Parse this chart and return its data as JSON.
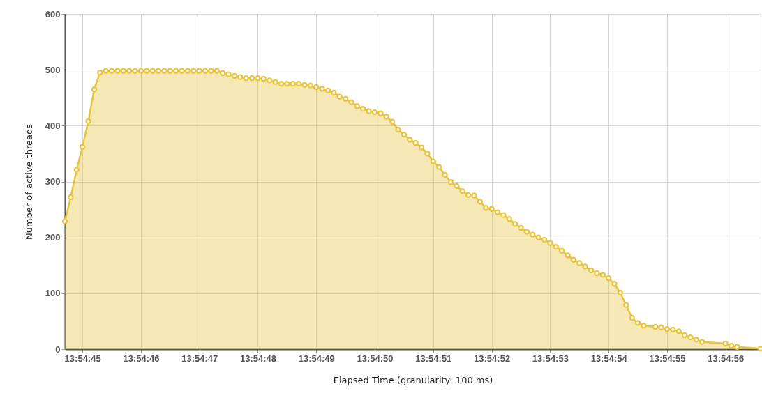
{
  "chart_data": {
    "type": "area",
    "xlabel": "Elapsed Time (granularity: 100 ms)",
    "ylabel": "Number of active threads",
    "x": [
      13.9124167,
      13.9124444,
      13.9124722,
      13.9125,
      13.9125278,
      13.9125556,
      13.9125833,
      13.9126111,
      13.9126389,
      13.9126667,
      13.9126944,
      13.9127222,
      13.91275,
      13.9127778,
      13.9128056,
      13.9128333,
      13.9128611,
      13.9128889,
      13.9129167,
      13.9129444,
      13.9129722,
      13.913,
      13.9130278,
      13.9130556,
      13.9130833,
      13.9131111,
      13.9131389,
      13.9131667,
      13.9131944,
      13.9132222,
      13.91325,
      13.9132778,
      13.9133056,
      13.9133333,
      13.9133611,
      13.9133889,
      13.9134167,
      13.9134444,
      13.9134722,
      13.9135,
      13.9135278,
      13.9135556,
      13.9135833,
      13.9136111,
      13.9136389,
      13.9136667,
      13.9136944,
      13.9137222,
      13.91375,
      13.9137778,
      13.9138056,
      13.9138333,
      13.9138611,
      13.9138889,
      13.9139167,
      13.9139444,
      13.9139722,
      13.914,
      13.9140278,
      13.9140556,
      13.9140833,
      13.9141111,
      13.9141389,
      13.9141667,
      13.9141944,
      13.9142222,
      13.91425,
      13.9142778,
      13.9143056,
      13.9143333,
      13.9143611,
      13.9143889,
      13.9144167,
      13.9144444,
      13.9144722,
      13.9145,
      13.9145278,
      13.9145556,
      13.9145833,
      13.9146111,
      13.9146389,
      13.9146667,
      13.9146944,
      13.9147222,
      13.91475,
      13.9147778,
      13.9148056,
      13.9148333,
      13.9148611,
      13.9148889,
      13.9149167,
      13.9149444,
      13.9149722,
      13.915,
      13.9150278,
      13.9150556,
      13.9150833,
      13.9151111,
      13.9151389,
      13.9151667,
      13.9152222,
      13.91525,
      13.9152778,
      13.9153056,
      13.9153333,
      13.9153611,
      13.9153889,
      13.9154167,
      13.9154444,
      13.9155556,
      13.9155833,
      13.9156111,
      13.9157222
    ],
    "series": [
      {
        "color": "#e8c33b",
        "values": [
          229,
          272,
          321,
          362,
          408,
          465,
          495,
          498,
          498,
          498,
          498,
          498,
          498,
          498,
          498,
          498,
          498,
          498,
          498,
          498,
          498,
          498,
          498,
          498,
          498,
          498,
          498,
          494,
          492,
          489,
          487,
          485,
          485,
          485,
          484,
          481,
          478,
          475,
          475,
          475,
          475,
          473,
          472,
          469,
          466,
          463,
          459,
          452,
          448,
          442,
          435,
          430,
          426,
          424,
          422,
          416,
          407,
          393,
          384,
          375,
          369,
          361,
          350,
          336,
          326,
          312,
          299,
          292,
          283,
          276,
          275,
          264,
          253,
          251,
          245,
          240,
          233,
          224,
          217,
          210,
          205,
          200,
          196,
          190,
          183,
          176,
          168,
          160,
          154,
          148,
          141,
          136,
          133,
          127,
          117,
          101,
          79,
          56,
          47,
          42,
          40,
          39,
          36,
          35,
          32,
          25,
          21,
          17,
          13,
          10,
          6,
          4,
          1
        ]
      }
    ],
    "xlim": [
      13.9124167,
      13.9157222
    ],
    "xticks": [
      {
        "value": 13.9125,
        "label": "13:54:45"
      },
      {
        "value": 13.9127778,
        "label": "13:54:46"
      },
      {
        "value": 13.9130556,
        "label": "13:54:47"
      },
      {
        "value": 13.9133333,
        "label": "13:54:48"
      },
      {
        "value": 13.9136111,
        "label": "13:54:49"
      },
      {
        "value": 13.9138889,
        "label": "13:54:50"
      },
      {
        "value": 13.9141667,
        "label": "13:54:51"
      },
      {
        "value": 13.9144444,
        "label": "13:54:52"
      },
      {
        "value": 13.9147222,
        "label": "13:54:53"
      },
      {
        "value": 13.915,
        "label": "13:54:54"
      },
      {
        "value": 13.9152778,
        "label": "13:54:55"
      },
      {
        "value": 13.9155556,
        "label": "13:54:56"
      }
    ],
    "ylim": [
      0,
      600
    ],
    "yticks": [
      0,
      100,
      200,
      300,
      400,
      500,
      600
    ],
    "grid": true,
    "marker": "circle",
    "line_style": "solid"
  }
}
